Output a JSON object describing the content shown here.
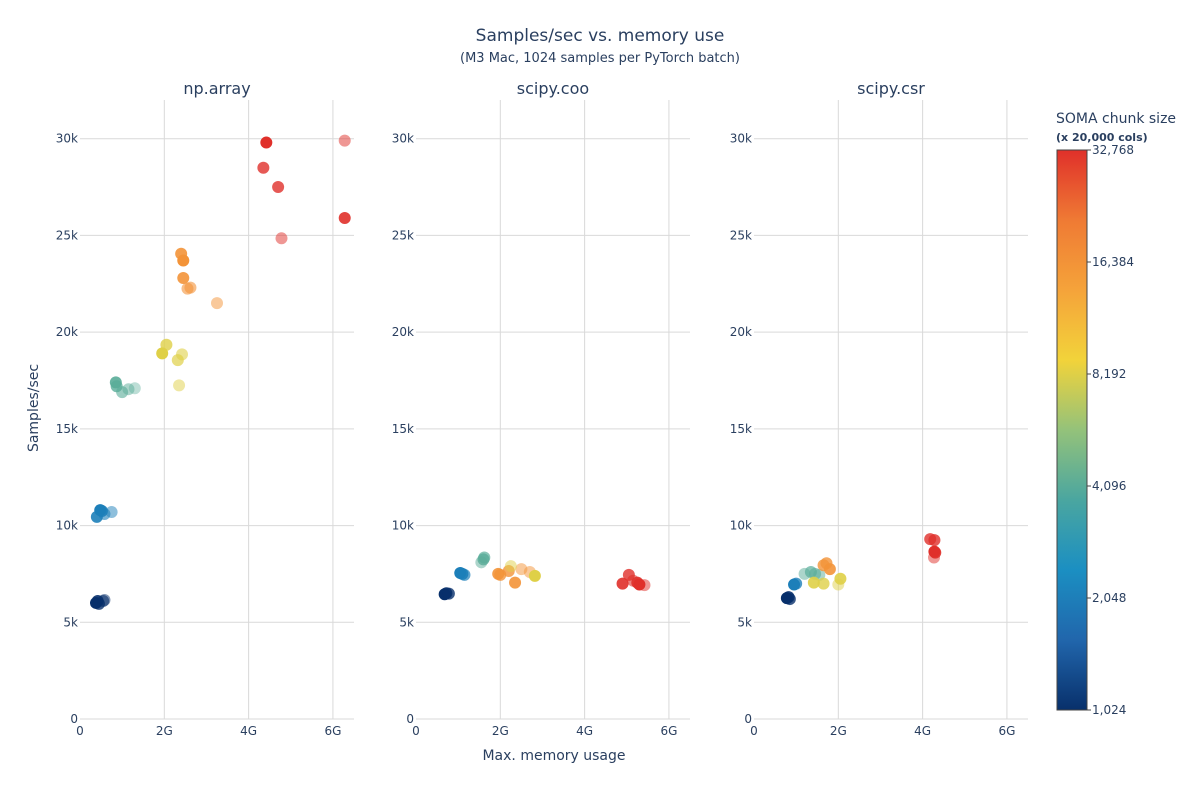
{
  "chart_data": {
    "type": "scatter",
    "title": "Samples/sec vs. memory use",
    "subtitle": "(M3 Mac, 1024 samples per PyTorch batch)",
    "xlabel": "Max. memory usage",
    "ylabel": "Samples/sec",
    "xlim": [
      0,
      6.5
    ],
    "ylim": [
      0,
      32000
    ],
    "x_ticks": [
      0,
      2,
      4,
      6
    ],
    "x_tick_labels": [
      "0",
      "2G",
      "4G",
      "6G"
    ],
    "y_ticks": [
      0,
      5000,
      10000,
      15000,
      20000,
      25000,
      30000
    ],
    "y_tick_labels": [
      "0",
      "5k",
      "10k",
      "15k",
      "20k",
      "25k",
      "30k"
    ],
    "grid": true,
    "colorbar": {
      "title": "SOMA chunk size",
      "subtitle": "(x 20,000 cols)",
      "scale": "log2",
      "range": [
        1024,
        32768
      ],
      "ticks": [
        1024,
        2048,
        4096,
        8192,
        16384,
        32768
      ],
      "tick_labels": [
        "1,024",
        "2,048",
        "4,096",
        "8,192",
        "16,384",
        "32,768"
      ],
      "colors": [
        "#08306b",
        "#2166ac",
        "#1b8fc2",
        "#4aa6a0",
        "#94c27a",
        "#f2d33a",
        "#f5a33a",
        "#ef7a34",
        "#e0302a"
      ]
    },
    "panels": [
      {
        "name": "np.array",
        "points": [
          {
            "x": 0.38,
            "y": 6000,
            "c": 1024,
            "o": 1.0
          },
          {
            "x": 0.42,
            "y": 6100,
            "c": 1024,
            "o": 0.9
          },
          {
            "x": 0.45,
            "y": 5950,
            "c": 1024,
            "o": 0.8
          },
          {
            "x": 0.55,
            "y": 6100,
            "c": 1024,
            "o": 0.6
          },
          {
            "x": 0.58,
            "y": 6150,
            "c": 1024,
            "o": 0.5
          },
          {
            "x": 0.4,
            "y": 10450,
            "c": 2048,
            "o": 0.9
          },
          {
            "x": 0.48,
            "y": 10800,
            "c": 2048,
            "o": 1.0
          },
          {
            "x": 0.52,
            "y": 10750,
            "c": 2048,
            "o": 0.9
          },
          {
            "x": 0.58,
            "y": 10600,
            "c": 2048,
            "o": 0.6
          },
          {
            "x": 0.75,
            "y": 10700,
            "c": 2048,
            "o": 0.5
          },
          {
            "x": 0.85,
            "y": 17400,
            "c": 4096,
            "o": 0.9
          },
          {
            "x": 0.87,
            "y": 17200,
            "c": 4096,
            "o": 0.8
          },
          {
            "x": 1.0,
            "y": 16900,
            "c": 4096,
            "o": 0.6
          },
          {
            "x": 1.15,
            "y": 17050,
            "c": 4096,
            "o": 0.5
          },
          {
            "x": 1.3,
            "y": 17100,
            "c": 4096,
            "o": 0.4
          },
          {
            "x": 1.95,
            "y": 18900,
            "c": 8192,
            "o": 1.0
          },
          {
            "x": 2.05,
            "y": 19350,
            "c": 8192,
            "o": 0.8
          },
          {
            "x": 2.32,
            "y": 18550,
            "c": 8192,
            "o": 0.7
          },
          {
            "x": 2.42,
            "y": 18850,
            "c": 8192,
            "o": 0.6
          },
          {
            "x": 2.35,
            "y": 17250,
            "c": 8192,
            "o": 0.5
          },
          {
            "x": 2.4,
            "y": 24050,
            "c": 16384,
            "o": 0.9
          },
          {
            "x": 2.45,
            "y": 23700,
            "c": 16384,
            "o": 1.0
          },
          {
            "x": 2.45,
            "y": 22800,
            "c": 16384,
            "o": 0.9
          },
          {
            "x": 2.55,
            "y": 22250,
            "c": 16384,
            "o": 0.6
          },
          {
            "x": 2.62,
            "y": 22300,
            "c": 16384,
            "o": 0.6
          },
          {
            "x": 3.25,
            "y": 21500,
            "c": 16384,
            "o": 0.5
          },
          {
            "x": 4.42,
            "y": 29800,
            "c": 32768,
            "o": 1.0
          },
          {
            "x": 4.35,
            "y": 28500,
            "c": 32768,
            "o": 0.8
          },
          {
            "x": 4.7,
            "y": 27500,
            "c": 32768,
            "o": 0.8
          },
          {
            "x": 4.78,
            "y": 24850,
            "c": 32768,
            "o": 0.5
          },
          {
            "x": 6.28,
            "y": 29900,
            "c": 32768,
            "o": 0.5
          },
          {
            "x": 6.28,
            "y": 25900,
            "c": 32768,
            "o": 0.9
          }
        ]
      },
      {
        "name": "scipy.coo",
        "points": [
          {
            "x": 0.68,
            "y": 6450,
            "c": 1024,
            "o": 1.0
          },
          {
            "x": 0.72,
            "y": 6500,
            "c": 1024,
            "o": 0.9
          },
          {
            "x": 0.78,
            "y": 6480,
            "c": 1024,
            "o": 0.8
          },
          {
            "x": 1.05,
            "y": 7550,
            "c": 2048,
            "o": 1.0
          },
          {
            "x": 1.1,
            "y": 7500,
            "c": 2048,
            "o": 0.9
          },
          {
            "x": 1.15,
            "y": 7450,
            "c": 2048,
            "o": 0.7
          },
          {
            "x": 1.6,
            "y": 8250,
            "c": 4096,
            "o": 0.8
          },
          {
            "x": 1.62,
            "y": 8350,
            "c": 4096,
            "o": 0.7
          },
          {
            "x": 1.55,
            "y": 8100,
            "c": 4096,
            "o": 0.5
          },
          {
            "x": 1.95,
            "y": 7500,
            "c": 16384,
            "o": 0.9
          },
          {
            "x": 2.0,
            "y": 7450,
            "c": 16384,
            "o": 0.8
          },
          {
            "x": 2.2,
            "y": 7650,
            "c": 16384,
            "o": 0.8
          },
          {
            "x": 2.35,
            "y": 7050,
            "c": 16384,
            "o": 0.9
          },
          {
            "x": 2.5,
            "y": 7750,
            "c": 16384,
            "o": 0.5
          },
          {
            "x": 2.7,
            "y": 7600,
            "c": 16384,
            "o": 0.5
          },
          {
            "x": 2.25,
            "y": 7900,
            "c": 8192,
            "o": 0.5
          },
          {
            "x": 2.82,
            "y": 7400,
            "c": 8192,
            "o": 1.0
          },
          {
            "x": 4.9,
            "y": 7000,
            "c": 32768,
            "o": 0.9
          },
          {
            "x": 5.05,
            "y": 7450,
            "c": 32768,
            "o": 0.8
          },
          {
            "x": 5.15,
            "y": 7150,
            "c": 32768,
            "o": 0.6
          },
          {
            "x": 5.25,
            "y": 7050,
            "c": 32768,
            "o": 0.9
          },
          {
            "x": 5.3,
            "y": 6950,
            "c": 32768,
            "o": 1.0
          },
          {
            "x": 5.42,
            "y": 6920,
            "c": 32768,
            "o": 0.5
          }
        ]
      },
      {
        "name": "scipy.csr",
        "points": [
          {
            "x": 0.78,
            "y": 6250,
            "c": 1024,
            "o": 1.0
          },
          {
            "x": 0.82,
            "y": 6300,
            "c": 1024,
            "o": 0.9
          },
          {
            "x": 0.85,
            "y": 6200,
            "c": 1024,
            "o": 0.8
          },
          {
            "x": 0.95,
            "y": 6950,
            "c": 2048,
            "o": 1.0
          },
          {
            "x": 1.0,
            "y": 7000,
            "c": 2048,
            "o": 0.8
          },
          {
            "x": 1.2,
            "y": 7500,
            "c": 4096,
            "o": 0.5
          },
          {
            "x": 1.35,
            "y": 7600,
            "c": 4096,
            "o": 0.7
          },
          {
            "x": 1.45,
            "y": 7500,
            "c": 4096,
            "o": 0.6
          },
          {
            "x": 1.55,
            "y": 7450,
            "c": 4096,
            "o": 0.5
          },
          {
            "x": 1.42,
            "y": 7050,
            "c": 8192,
            "o": 0.9
          },
          {
            "x": 1.65,
            "y": 7000,
            "c": 8192,
            "o": 0.8
          },
          {
            "x": 2.05,
            "y": 7250,
            "c": 8192,
            "o": 0.9
          },
          {
            "x": 2.0,
            "y": 6950,
            "c": 8192,
            "o": 0.5
          },
          {
            "x": 1.65,
            "y": 7950,
            "c": 16384,
            "o": 0.8
          },
          {
            "x": 1.72,
            "y": 8050,
            "c": 16384,
            "o": 0.8
          },
          {
            "x": 1.8,
            "y": 7750,
            "c": 16384,
            "o": 0.9
          },
          {
            "x": 4.18,
            "y": 9300,
            "c": 32768,
            "o": 0.8
          },
          {
            "x": 4.28,
            "y": 9250,
            "c": 32768,
            "o": 0.8
          },
          {
            "x": 4.28,
            "y": 8650,
            "c": 32768,
            "o": 1.0
          },
          {
            "x": 4.3,
            "y": 8600,
            "c": 32768,
            "o": 0.9
          },
          {
            "x": 4.27,
            "y": 8350,
            "c": 32768,
            "o": 0.5
          }
        ]
      }
    ]
  }
}
